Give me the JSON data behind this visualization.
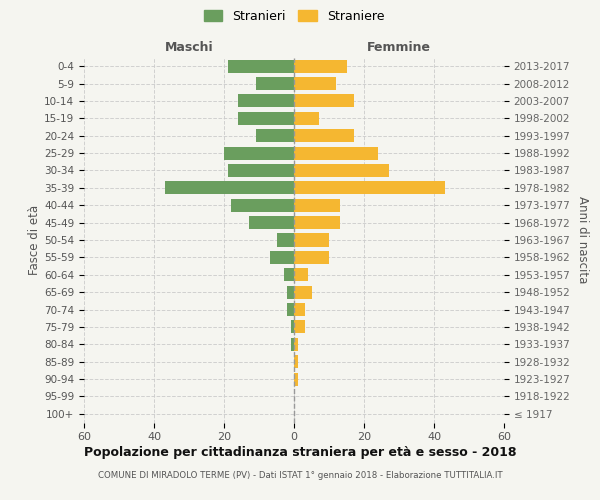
{
  "age_groups": [
    "100+",
    "95-99",
    "90-94",
    "85-89",
    "80-84",
    "75-79",
    "70-74",
    "65-69",
    "60-64",
    "55-59",
    "50-54",
    "45-49",
    "40-44",
    "35-39",
    "30-34",
    "25-29",
    "20-24",
    "15-19",
    "10-14",
    "5-9",
    "0-4"
  ],
  "birth_years": [
    "≤ 1917",
    "1918-1922",
    "1923-1927",
    "1928-1932",
    "1933-1937",
    "1938-1942",
    "1943-1947",
    "1948-1952",
    "1953-1957",
    "1958-1962",
    "1963-1967",
    "1968-1972",
    "1973-1977",
    "1978-1982",
    "1983-1987",
    "1988-1992",
    "1993-1997",
    "1998-2002",
    "2003-2007",
    "2008-2012",
    "2013-2017"
  ],
  "maschi": [
    0,
    0,
    0,
    0,
    1,
    1,
    2,
    2,
    3,
    7,
    5,
    13,
    18,
    37,
    19,
    20,
    11,
    16,
    16,
    11,
    19
  ],
  "femmine": [
    0,
    0,
    1,
    1,
    1,
    3,
    3,
    5,
    4,
    10,
    10,
    13,
    13,
    43,
    27,
    24,
    17,
    7,
    17,
    12,
    15
  ],
  "color_maschi": "#6a9e5e",
  "color_femmine": "#f5b731",
  "title1": "Popolazione per cittadinanza straniera per età e sesso - 2018",
  "title2": "COMUNE DI MIRADOLO TERME (PV) - Dati ISTAT 1° gennaio 2018 - Elaborazione TUTTITALIA.IT",
  "legend_maschi": "Stranieri",
  "legend_femmine": "Straniere",
  "xlabel_left": "Maschi",
  "xlabel_right": "Femmine",
  "ylabel_left": "Fasce di età",
  "ylabel_right": "Anni di nascita",
  "xlim": 60,
  "background_color": "#f5f5f0"
}
